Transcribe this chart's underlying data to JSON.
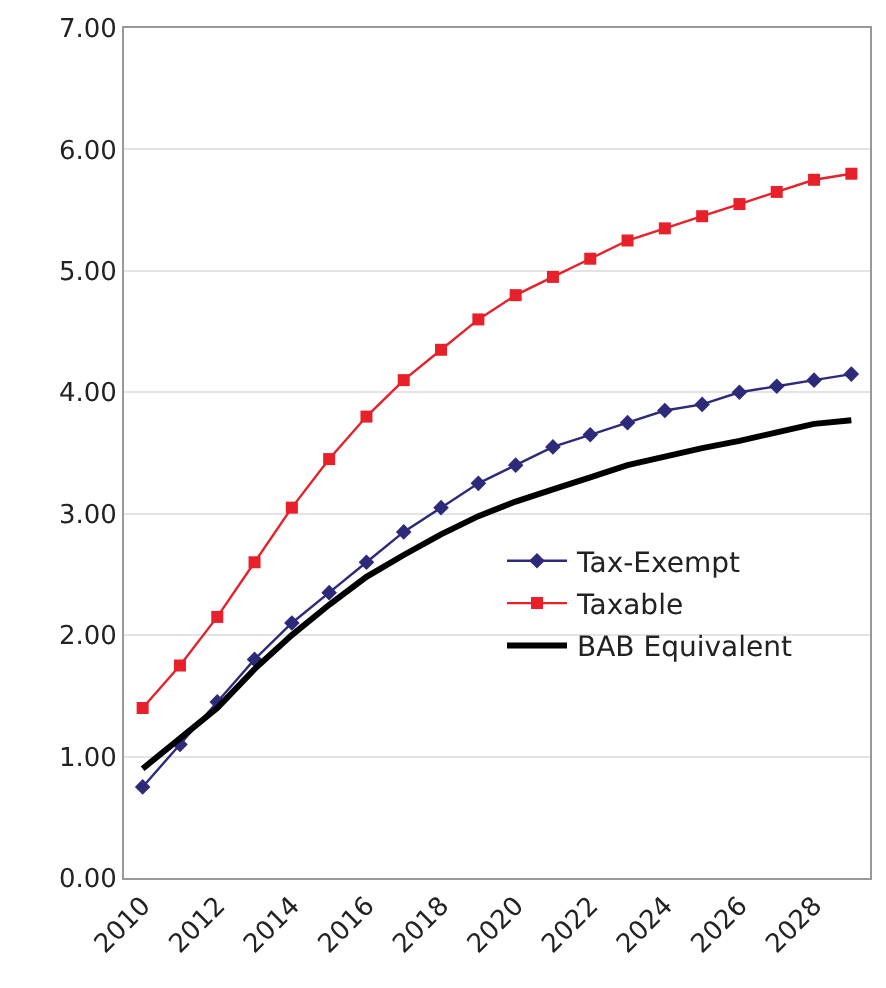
{
  "chart_data": {
    "type": "line",
    "categories": [
      "2010",
      null,
      "2012",
      null,
      "2014",
      null,
      "2016",
      null,
      "2018",
      null,
      "2020",
      null,
      "2022",
      null,
      "2024",
      null,
      "2026",
      null,
      "2028",
      null
    ],
    "series": [
      {
        "name": "Tax-Exempt",
        "color": "#2e2a7a",
        "marker": "diamond",
        "values": [
          0.75,
          1.1,
          1.45,
          1.8,
          2.1,
          2.35,
          2.6,
          2.85,
          3.05,
          3.25,
          3.4,
          3.55,
          3.65,
          3.75,
          3.85,
          3.9,
          4.0,
          4.05,
          4.1,
          4.15
        ]
      },
      {
        "name": "Taxable",
        "color": "#e8202a",
        "marker": "square",
        "values": [
          1.4,
          1.75,
          2.15,
          2.6,
          3.05,
          3.45,
          3.8,
          4.1,
          4.35,
          4.6,
          4.8,
          4.95,
          5.1,
          5.25,
          5.35,
          5.45,
          5.55,
          5.65,
          5.75,
          5.8
        ]
      },
      {
        "name": "BAB Equivalent",
        "color": "#000000",
        "marker": "none",
        "values": [
          0.9,
          1.15,
          1.4,
          1.72,
          2.0,
          2.25,
          2.48,
          2.66,
          2.83,
          2.98,
          3.1,
          3.2,
          3.3,
          3.4,
          3.47,
          3.54,
          3.6,
          3.67,
          3.74,
          3.77
        ]
      }
    ],
    "ylim": [
      0,
      7
    ],
    "yticks": [
      {
        "value": 0,
        "label": "0.00"
      },
      {
        "value": 1,
        "label": "1.00"
      },
      {
        "value": 2,
        "label": "2.00"
      },
      {
        "value": 3,
        "label": "3.00"
      },
      {
        "value": 4,
        "label": "4.00"
      },
      {
        "value": 5,
        "label": "5.00"
      },
      {
        "value": 6,
        "label": "6.00"
      },
      {
        "value": 7,
        "label": "7.00"
      }
    ],
    "grid": "y",
    "legend": "right",
    "line_style": "solid"
  }
}
